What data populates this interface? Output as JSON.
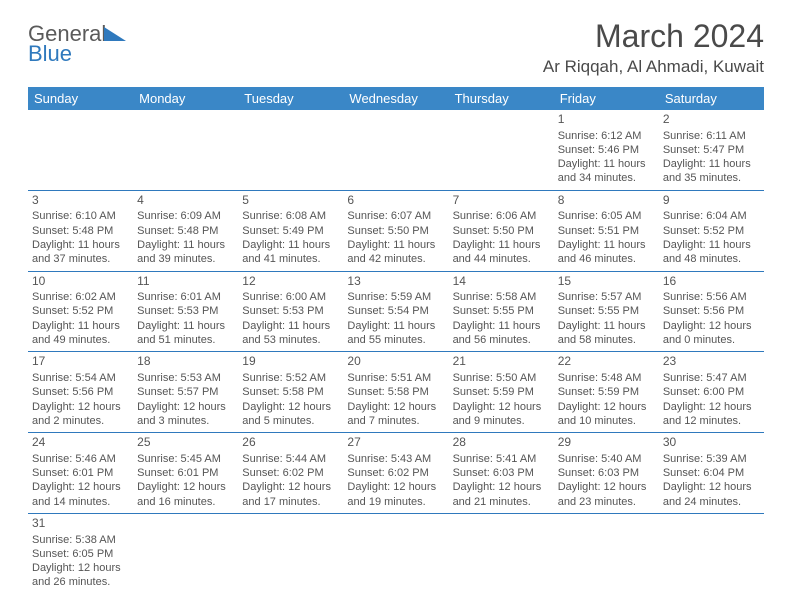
{
  "brand": {
    "name_part1": "General",
    "name_part2": "Blue"
  },
  "title": "March 2024",
  "location": "Ar Riqqah, Al Ahmadi, Kuwait",
  "colors": {
    "header_bg": "#3a87c7",
    "border": "#2f79bd",
    "text": "#555555",
    "brand_gray": "#5a5a5a",
    "brand_blue": "#2f79bd"
  },
  "day_headers": [
    "Sunday",
    "Monday",
    "Tuesday",
    "Wednesday",
    "Thursday",
    "Friday",
    "Saturday"
  ],
  "weeks": [
    [
      null,
      null,
      null,
      null,
      null,
      {
        "n": "1",
        "sr": "6:12 AM",
        "ss": "5:46 PM",
        "dl": "11 hours and 34 minutes."
      },
      {
        "n": "2",
        "sr": "6:11 AM",
        "ss": "5:47 PM",
        "dl": "11 hours and 35 minutes."
      }
    ],
    [
      {
        "n": "3",
        "sr": "6:10 AM",
        "ss": "5:48 PM",
        "dl": "11 hours and 37 minutes."
      },
      {
        "n": "4",
        "sr": "6:09 AM",
        "ss": "5:48 PM",
        "dl": "11 hours and 39 minutes."
      },
      {
        "n": "5",
        "sr": "6:08 AM",
        "ss": "5:49 PM",
        "dl": "11 hours and 41 minutes."
      },
      {
        "n": "6",
        "sr": "6:07 AM",
        "ss": "5:50 PM",
        "dl": "11 hours and 42 minutes."
      },
      {
        "n": "7",
        "sr": "6:06 AM",
        "ss": "5:50 PM",
        "dl": "11 hours and 44 minutes."
      },
      {
        "n": "8",
        "sr": "6:05 AM",
        "ss": "5:51 PM",
        "dl": "11 hours and 46 minutes."
      },
      {
        "n": "9",
        "sr": "6:04 AM",
        "ss": "5:52 PM",
        "dl": "11 hours and 48 minutes."
      }
    ],
    [
      {
        "n": "10",
        "sr": "6:02 AM",
        "ss": "5:52 PM",
        "dl": "11 hours and 49 minutes."
      },
      {
        "n": "11",
        "sr": "6:01 AM",
        "ss": "5:53 PM",
        "dl": "11 hours and 51 minutes."
      },
      {
        "n": "12",
        "sr": "6:00 AM",
        "ss": "5:53 PM",
        "dl": "11 hours and 53 minutes."
      },
      {
        "n": "13",
        "sr": "5:59 AM",
        "ss": "5:54 PM",
        "dl": "11 hours and 55 minutes."
      },
      {
        "n": "14",
        "sr": "5:58 AM",
        "ss": "5:55 PM",
        "dl": "11 hours and 56 minutes."
      },
      {
        "n": "15",
        "sr": "5:57 AM",
        "ss": "5:55 PM",
        "dl": "11 hours and 58 minutes."
      },
      {
        "n": "16",
        "sr": "5:56 AM",
        "ss": "5:56 PM",
        "dl": "12 hours and 0 minutes."
      }
    ],
    [
      {
        "n": "17",
        "sr": "5:54 AM",
        "ss": "5:56 PM",
        "dl": "12 hours and 2 minutes."
      },
      {
        "n": "18",
        "sr": "5:53 AM",
        "ss": "5:57 PM",
        "dl": "12 hours and 3 minutes."
      },
      {
        "n": "19",
        "sr": "5:52 AM",
        "ss": "5:58 PM",
        "dl": "12 hours and 5 minutes."
      },
      {
        "n": "20",
        "sr": "5:51 AM",
        "ss": "5:58 PM",
        "dl": "12 hours and 7 minutes."
      },
      {
        "n": "21",
        "sr": "5:50 AM",
        "ss": "5:59 PM",
        "dl": "12 hours and 9 minutes."
      },
      {
        "n": "22",
        "sr": "5:48 AM",
        "ss": "5:59 PM",
        "dl": "12 hours and 10 minutes."
      },
      {
        "n": "23",
        "sr": "5:47 AM",
        "ss": "6:00 PM",
        "dl": "12 hours and 12 minutes."
      }
    ],
    [
      {
        "n": "24",
        "sr": "5:46 AM",
        "ss": "6:01 PM",
        "dl": "12 hours and 14 minutes."
      },
      {
        "n": "25",
        "sr": "5:45 AM",
        "ss": "6:01 PM",
        "dl": "12 hours and 16 minutes."
      },
      {
        "n": "26",
        "sr": "5:44 AM",
        "ss": "6:02 PM",
        "dl": "12 hours and 17 minutes."
      },
      {
        "n": "27",
        "sr": "5:43 AM",
        "ss": "6:02 PM",
        "dl": "12 hours and 19 minutes."
      },
      {
        "n": "28",
        "sr": "5:41 AM",
        "ss": "6:03 PM",
        "dl": "12 hours and 21 minutes."
      },
      {
        "n": "29",
        "sr": "5:40 AM",
        "ss": "6:03 PM",
        "dl": "12 hours and 23 minutes."
      },
      {
        "n": "30",
        "sr": "5:39 AM",
        "ss": "6:04 PM",
        "dl": "12 hours and 24 minutes."
      }
    ],
    [
      {
        "n": "31",
        "sr": "5:38 AM",
        "ss": "6:05 PM",
        "dl": "12 hours and 26 minutes."
      },
      null,
      null,
      null,
      null,
      null,
      null
    ]
  ],
  "labels": {
    "sunrise": "Sunrise:",
    "sunset": "Sunset:",
    "daylight": "Daylight:"
  }
}
